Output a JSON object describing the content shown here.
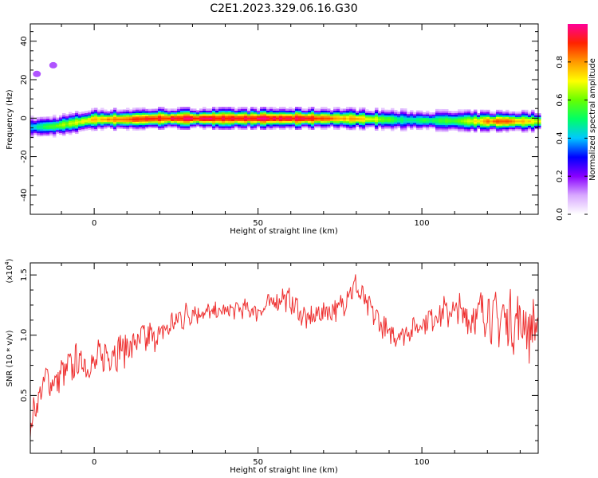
{
  "title": "C2E1.2023.329.06.16.G30",
  "chart_data": [
    {
      "type": "heatmap",
      "xlabel": "Height of straight line (km)",
      "ylabel": "Frequency (Hz)",
      "xlim": [
        -19.5,
        135.5
      ],
      "ylim": [
        -50,
        49
      ],
      "xticks": [
        0,
        50,
        100
      ],
      "yticks": [
        -40,
        -20,
        0,
        20,
        40
      ],
      "colorbar": {
        "label": "Normalized spectral amplitude",
        "range": [
          0,
          1
        ],
        "ticks": [
          0.0,
          0.2,
          0.4,
          0.6,
          0.8
        ],
        "tick_labels": [
          "0.0",
          "0.2",
          "0.4",
          "0.6",
          "0.8"
        ],
        "colors": [
          "#ffffff",
          "#d8a8ff",
          "#8800ff",
          "#0000ff",
          "#00c8ff",
          "#00ff66",
          "#66ff00",
          "#ffff00",
          "#ff9900",
          "#ff2200",
          "#ff0099"
        ]
      },
      "ridge_center_hz": [
        {
          "x": -19,
          "y": -4.5
        },
        {
          "x": -12,
          "y": -4
        },
        {
          "x": -5,
          "y": -2
        },
        {
          "x": 0,
          "y": -0.5
        },
        {
          "x": 10,
          "y": -0.5
        },
        {
          "x": 20,
          "y": 0
        },
        {
          "x": 50,
          "y": 0
        },
        {
          "x": 75,
          "y": 0
        },
        {
          "x": 100,
          "y": -1
        },
        {
          "x": 120,
          "y": -1.5
        },
        {
          "x": 135,
          "y": -1.5
        }
      ],
      "peak_amplitude": [
        {
          "x": -19,
          "v": 0.45
        },
        {
          "x": -15,
          "v": 0.55
        },
        {
          "x": -10,
          "v": 0.65
        },
        {
          "x": -5,
          "v": 0.7
        },
        {
          "x": 0,
          "v": 0.8
        },
        {
          "x": 5,
          "v": 0.85
        },
        {
          "x": 10,
          "v": 0.9
        },
        {
          "x": 18,
          "v": 0.95
        },
        {
          "x": 30,
          "v": 1.0
        },
        {
          "x": 50,
          "v": 1.0
        },
        {
          "x": 65,
          "v": 0.97
        },
        {
          "x": 75,
          "v": 0.85
        },
        {
          "x": 85,
          "v": 0.75
        },
        {
          "x": 90,
          "v": 0.6
        },
        {
          "x": 95,
          "v": 0.5
        },
        {
          "x": 100,
          "v": 0.55
        },
        {
          "x": 110,
          "v": 0.6
        },
        {
          "x": 115,
          "v": 0.7
        },
        {
          "x": 120,
          "v": 0.85
        },
        {
          "x": 125,
          "v": 0.9
        },
        {
          "x": 130,
          "v": 0.8
        },
        {
          "x": 135,
          "v": 0.75
        }
      ],
      "faint_blobs": [
        {
          "x": -17.5,
          "y": 23,
          "v": 0.15
        },
        {
          "x": -12.5,
          "y": 27.5,
          "v": 0.15
        }
      ]
    },
    {
      "type": "line",
      "xlabel": "Height of straight line (km)",
      "ylabel": "SNR (10 * v/v)",
      "y_multiplier_label": "(x10",
      "y_multiplier_exp": "4",
      "y_multiplier_close": ")",
      "xlim": [
        -19.5,
        135.5
      ],
      "ylim": [
        0.02,
        1.6
      ],
      "xticks": [
        0,
        50,
        100
      ],
      "yticks": [
        0.5,
        1.0,
        1.5
      ],
      "ytick_labels": [
        "0.5",
        "1.0",
        "1.5"
      ],
      "line_color": "#ee3030",
      "series": [
        {
          "values": [
            {
              "x": -19.5,
              "y": 0.12
            },
            {
              "x": -18.5,
              "y": 0.4
            },
            {
              "x": -17,
              "y": 0.45
            },
            {
              "x": -15,
              "y": 0.65
            },
            {
              "x": -12,
              "y": 0.6
            },
            {
              "x": -10,
              "y": 0.68
            },
            {
              "x": -5,
              "y": 0.78
            },
            {
              "x": 0,
              "y": 0.76
            },
            {
              "x": 5,
              "y": 0.86
            },
            {
              "x": 10,
              "y": 0.9
            },
            {
              "x": 15,
              "y": 0.96
            },
            {
              "x": 20,
              "y": 1.0
            },
            {
              "x": 25,
              "y": 1.12
            },
            {
              "x": 30,
              "y": 1.2
            },
            {
              "x": 35,
              "y": 1.18
            },
            {
              "x": 40,
              "y": 1.2
            },
            {
              "x": 45,
              "y": 1.22
            },
            {
              "x": 50,
              "y": 1.2
            },
            {
              "x": 55,
              "y": 1.28
            },
            {
              "x": 58,
              "y": 1.32
            },
            {
              "x": 62,
              "y": 1.22
            },
            {
              "x": 65,
              "y": 1.12
            },
            {
              "x": 70,
              "y": 1.2
            },
            {
              "x": 75,
              "y": 1.22
            },
            {
              "x": 78,
              "y": 1.38
            },
            {
              "x": 80,
              "y": 1.4
            },
            {
              "x": 83,
              "y": 1.25
            },
            {
              "x": 86,
              "y": 1.15
            },
            {
              "x": 90,
              "y": 1.0
            },
            {
              "x": 95,
              "y": 1.02
            },
            {
              "x": 100,
              "y": 1.1
            },
            {
              "x": 105,
              "y": 1.18
            },
            {
              "x": 110,
              "y": 1.2
            },
            {
              "x": 115,
              "y": 1.15
            },
            {
              "x": 118,
              "y": 1.18
            },
            {
              "x": 120,
              "y": 1.22
            },
            {
              "x": 122,
              "y": 1.12
            },
            {
              "x": 125,
              "y": 1.15
            },
            {
              "x": 128,
              "y": 1.1
            },
            {
              "x": 131,
              "y": 1.12
            },
            {
              "x": 133,
              "y": 1.02
            },
            {
              "x": 135,
              "y": 1.15
            }
          ],
          "noise_amplitude": [
            {
              "x": -19.5,
              "v": 0.08
            },
            {
              "x": -10,
              "v": 0.12
            },
            {
              "x": 0,
              "v": 0.14
            },
            {
              "x": 20,
              "v": 0.12
            },
            {
              "x": 40,
              "v": 0.06
            },
            {
              "x": 60,
              "v": 0.09
            },
            {
              "x": 80,
              "v": 0.1
            },
            {
              "x": 100,
              "v": 0.08
            },
            {
              "x": 115,
              "v": 0.16
            },
            {
              "x": 125,
              "v": 0.2
            },
            {
              "x": 135,
              "v": 0.22
            }
          ]
        }
      ]
    }
  ]
}
